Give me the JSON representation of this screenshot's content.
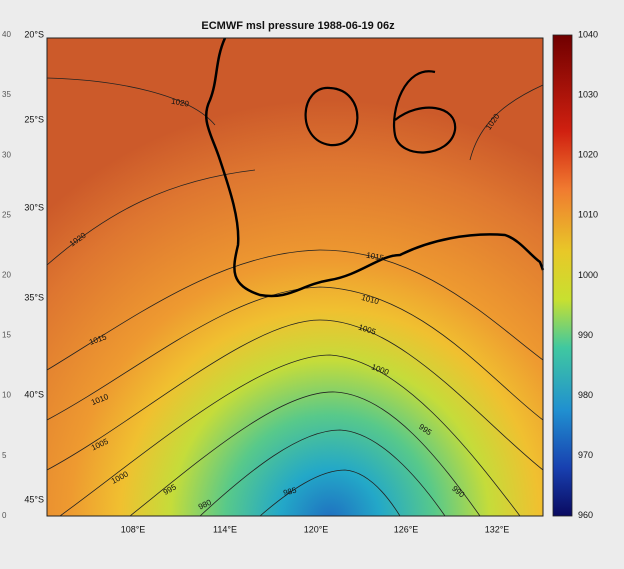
{
  "title": "ECMWF msl pressure  1988-06-19 06z",
  "lat_labels": [
    "20°S",
    "25°S",
    "30°S",
    "35°S",
    "40°S",
    "45°S"
  ],
  "lon_labels": [
    "108°E",
    "114°E",
    "120°E",
    "126°E",
    "132°E"
  ],
  "left_axis_labels": [
    "40",
    "35",
    "30",
    "25",
    "20",
    "15",
    "10",
    "5",
    "0"
  ],
  "colorbar_labels": [
    "1040",
    "1030",
    "1020",
    "1010",
    "1000",
    "990",
    "980",
    "970",
    "960"
  ],
  "contour_labels": [
    "1020",
    "1020",
    "1020",
    "1015",
    "1010",
    "1005",
    "1000",
    "995",
    "990",
    "985",
    "980",
    "995",
    "1000",
    "1005",
    "1010",
    "1015"
  ]
}
